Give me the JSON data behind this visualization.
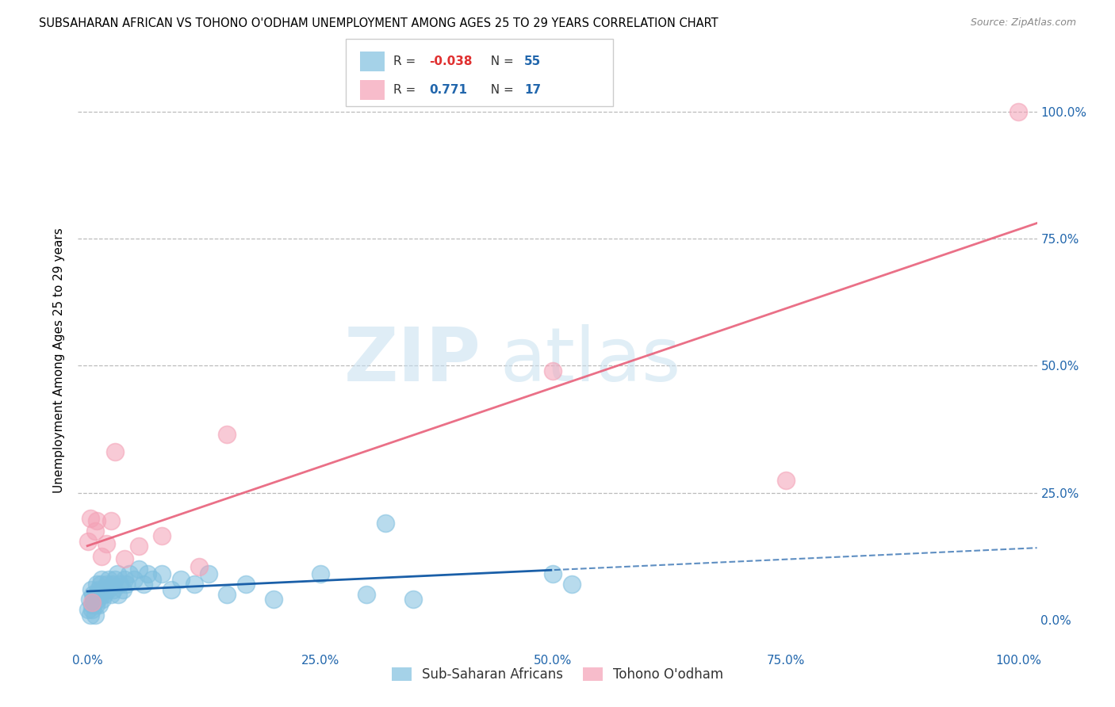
{
  "title": "SUBSAHARAN AFRICAN VS TOHONO O'ODHAM UNEMPLOYMENT AMONG AGES 25 TO 29 YEARS CORRELATION CHART",
  "source": "Source: ZipAtlas.com",
  "ylabel": "Unemployment Among Ages 25 to 29 years",
  "legend1_label": "Sub-Saharan Africans",
  "legend2_label": "Tohono O'odham",
  "R1": "-0.038",
  "N1": "55",
  "R2": "0.771",
  "N2": "17",
  "blue_color": "#7fbfdf",
  "pink_color": "#f4a0b5",
  "blue_line_color": "#1a5fa8",
  "pink_line_color": "#e8607a",
  "grid_color": "#bbbbbb",
  "watermark_zip": "ZIP",
  "watermark_atlas": "atlas",
  "blue_scatter_x": [
    0.001,
    0.002,
    0.003,
    0.004,
    0.005,
    0.005,
    0.006,
    0.007,
    0.008,
    0.009,
    0.01,
    0.01,
    0.011,
    0.012,
    0.013,
    0.014,
    0.015,
    0.015,
    0.016,
    0.017,
    0.018,
    0.02,
    0.021,
    0.022,
    0.023,
    0.025,
    0.027,
    0.028,
    0.03,
    0.032,
    0.033,
    0.035,
    0.038,
    0.04,
    0.042,
    0.045,
    0.05,
    0.055,
    0.06,
    0.065,
    0.07,
    0.08,
    0.09,
    0.1,
    0.115,
    0.13,
    0.15,
    0.17,
    0.2,
    0.25,
    0.3,
    0.32,
    0.35,
    0.5,
    0.52
  ],
  "blue_scatter_y": [
    0.02,
    0.04,
    0.01,
    0.06,
    0.03,
    0.02,
    0.05,
    0.04,
    0.01,
    0.03,
    0.05,
    0.07,
    0.04,
    0.06,
    0.03,
    0.07,
    0.05,
    0.08,
    0.04,
    0.06,
    0.05,
    0.06,
    0.07,
    0.06,
    0.08,
    0.05,
    0.07,
    0.06,
    0.08,
    0.09,
    0.05,
    0.07,
    0.06,
    0.08,
    0.07,
    0.09,
    0.08,
    0.1,
    0.07,
    0.09,
    0.08,
    0.09,
    0.06,
    0.08,
    0.07,
    0.09,
    0.05,
    0.07,
    0.04,
    0.09,
    0.05,
    0.19,
    0.04,
    0.09,
    0.07
  ],
  "pink_scatter_x": [
    0.001,
    0.003,
    0.005,
    0.008,
    0.01,
    0.015,
    0.02,
    0.025,
    0.03,
    0.04,
    0.055,
    0.08,
    0.12,
    0.15,
    0.5,
    0.75,
    1.0
  ],
  "pink_scatter_y": [
    0.155,
    0.2,
    0.035,
    0.175,
    0.195,
    0.125,
    0.15,
    0.195,
    0.33,
    0.12,
    0.145,
    0.165,
    0.105,
    0.365,
    0.49,
    0.275,
    1.0
  ],
  "xlim": [
    -0.01,
    1.02
  ],
  "ylim": [
    -0.06,
    1.08
  ],
  "x_ticks": [
    0.0,
    0.25,
    0.5,
    0.75,
    1.0
  ],
  "x_tick_labels": [
    "0.0%",
    "25.0%",
    "50.0%",
    "75.0%",
    "100.0%"
  ],
  "y_ticks": [
    0.0,
    0.25,
    0.5,
    0.75,
    1.0
  ],
  "y_tick_labels": [
    "0.0%",
    "25.0%",
    "50.0%",
    "75.0%",
    "100.0%"
  ]
}
